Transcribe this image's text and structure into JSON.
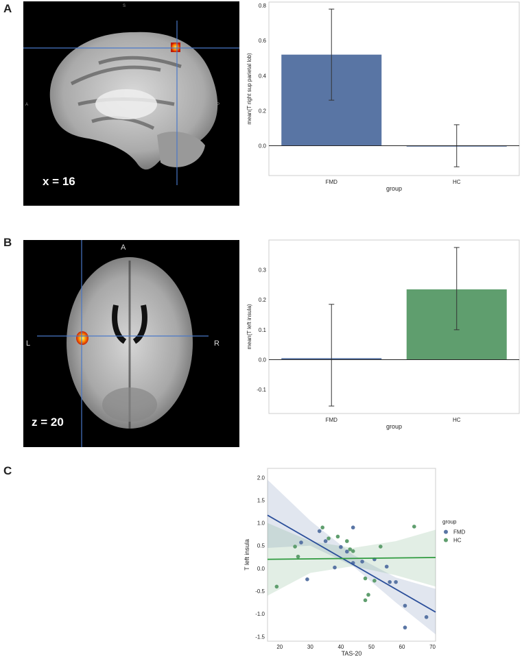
{
  "panels": {
    "a": {
      "letter": "A",
      "slice_label": "x = 16",
      "orientation": {
        "top": "S",
        "left": "A",
        "right": "P"
      }
    },
    "b": {
      "letter": "B",
      "slice_label": "z = 20",
      "orientation": {
        "top": "A",
        "left": "L",
        "right": "R"
      }
    },
    "c": {
      "letter": "C"
    }
  },
  "colors": {
    "FMD": "#5975a4",
    "HC": "#5f9e6e",
    "FMD_line": "#2b4f9a",
    "HC_line": "#2e9a3e",
    "axis": "#222222"
  },
  "chart_data": [
    {
      "type": "bar",
      "categories": [
        "FMD",
        "HC"
      ],
      "values": [
        0.52,
        0.0
      ],
      "errors": [
        [
          0.26,
          0.78
        ],
        [
          -0.12,
          0.12
        ]
      ],
      "bar_colors": [
        "#5975a4",
        "#5975a4"
      ],
      "xlabel": "group",
      "ylabel": "mean(T right sup parietal lob)",
      "ylim": [
        -0.17,
        0.82
      ],
      "yticks": [
        0.0,
        0.2,
        0.4,
        0.6,
        0.8
      ],
      "ytick_labels": [
        "0.0",
        "0.2",
        "0.4",
        "0.6",
        "0.8"
      ],
      "grid": false
    },
    {
      "type": "bar",
      "categories": [
        "FMD",
        "HC"
      ],
      "values": [
        0.005,
        0.235
      ],
      "errors": [
        [
          -0.155,
          0.185
        ],
        [
          0.1,
          0.375
        ]
      ],
      "bar_colors": [
        "#5975a4",
        "#5f9e6e"
      ],
      "xlabel": "group",
      "ylabel": "mean(T left insula)",
      "ylim": [
        -0.18,
        0.4
      ],
      "yticks": [
        -0.1,
        0.0,
        0.1,
        0.2,
        0.3
      ],
      "ytick_labels": [
        "-0.1",
        "0.0",
        "0.1",
        "0.2",
        "0.3"
      ],
      "grid": false
    },
    {
      "type": "scatter",
      "xlabel": "TAS-20",
      "ylabel": "T left insula",
      "xlim": [
        16,
        71
      ],
      "ylim": [
        -1.6,
        2.2
      ],
      "xticks": [
        20,
        30,
        40,
        50,
        60,
        70
      ],
      "xtick_labels": [
        "20",
        "30",
        "40",
        "50",
        "60",
        "70"
      ],
      "yticks": [
        -1.5,
        -1.0,
        -0.5,
        0.0,
        0.5,
        1.0,
        1.5,
        2.0
      ],
      "ytick_labels": [
        "-1.5",
        "-1.0",
        "-0.5",
        "0.0",
        "0.5",
        "1.0",
        "1.5",
        "2.0"
      ],
      "legend": {
        "title": "group",
        "position": "right",
        "entries": [
          "FMD",
          "HC"
        ]
      },
      "series": [
        {
          "name": "FMD",
          "color": "#5975a4",
          "points": [
            [
              27,
              0.57
            ],
            [
              29,
              -0.24
            ],
            [
              33,
              0.82
            ],
            [
              35,
              0.6
            ],
            [
              38,
              0.02
            ],
            [
              40,
              0.47
            ],
            [
              42,
              0.37
            ],
            [
              44,
              0.9
            ],
            [
              44,
              0.12
            ],
            [
              47,
              0.15
            ],
            [
              51,
              0.2
            ],
            [
              55,
              0.04
            ],
            [
              56,
              -0.3
            ],
            [
              58,
              -0.3
            ],
            [
              61,
              -0.82
            ],
            [
              61,
              -1.3
            ],
            [
              68,
              -1.07
            ]
          ],
          "fit": {
            "x": [
              16,
              71
            ],
            "y": [
              1.17,
              -0.96
            ]
          },
          "ci_upper": [
            [
              16,
              1.95
            ],
            [
              30,
              1.05
            ],
            [
              44,
              0.3
            ],
            [
              58,
              -0.2
            ],
            [
              71,
              -0.45
            ]
          ],
          "ci_lower": [
            [
              16,
              0.45
            ],
            [
              30,
              0.5
            ],
            [
              44,
              0.05
            ],
            [
              58,
              -0.75
            ],
            [
              71,
              -1.45
            ]
          ]
        },
        {
          "name": "HC",
          "color": "#5f9e6e",
          "points": [
            [
              19,
              -0.4
            ],
            [
              25,
              0.48
            ],
            [
              26,
              0.26
            ],
            [
              34,
              0.9
            ],
            [
              36,
              0.66
            ],
            [
              39,
              0.7
            ],
            [
              42,
              0.6
            ],
            [
              43,
              0.42
            ],
            [
              44,
              0.38
            ],
            [
              48,
              -0.22
            ],
            [
              48,
              -0.7
            ],
            [
              49,
              -0.58
            ],
            [
              51,
              -0.27
            ],
            [
              53,
              0.48
            ],
            [
              64,
              0.92
            ]
          ],
          "fit": {
            "x": [
              16,
              71
            ],
            "y": [
              0.2,
              0.24
            ]
          },
          "ci_upper": [
            [
              16,
              1.0
            ],
            [
              30,
              0.6
            ],
            [
              44,
              0.45
            ],
            [
              58,
              0.6
            ],
            [
              71,
              0.85
            ]
          ],
          "ci_lower": [
            [
              16,
              -0.6
            ],
            [
              30,
              -0.1
            ],
            [
              44,
              0.05
            ],
            [
              58,
              -0.15
            ],
            [
              71,
              -0.4
            ]
          ]
        }
      ],
      "grid": false
    }
  ]
}
